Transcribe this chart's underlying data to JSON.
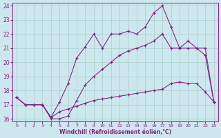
{
  "xlabel": "Windchill (Refroidissement éolien,°C)",
  "background_color": "#cce8ee",
  "grid_color": "#aacccc",
  "line_color": "#882288",
  "xlim": [
    -0.5,
    23.5
  ],
  "ylim": [
    15.8,
    24.2
  ],
  "xticks": [
    0,
    1,
    2,
    3,
    4,
    5,
    6,
    7,
    8,
    9,
    10,
    11,
    12,
    13,
    14,
    15,
    16,
    17,
    18,
    19,
    20,
    21,
    22,
    23
  ],
  "yticks": [
    16,
    17,
    18,
    19,
    20,
    21,
    22,
    23,
    24
  ],
  "line_top_x": [
    0,
    1,
    2,
    3,
    4,
    5,
    6,
    7,
    8,
    9,
    10,
    11,
    12,
    13,
    14,
    15,
    16,
    17,
    18,
    19,
    20,
    21,
    22,
    23
  ],
  "line_top_y": [
    17.5,
    17.0,
    17.0,
    17.0,
    16.1,
    17.2,
    18.5,
    20.3,
    21.1,
    22.0,
    21.0,
    22.0,
    22.0,
    22.2,
    22.0,
    22.5,
    23.5,
    24.0,
    22.5,
    21.0,
    21.5,
    21.0,
    21.0,
    17.2
  ],
  "line_mid_x": [
    0,
    1,
    2,
    3,
    4,
    5,
    6,
    7,
    8,
    9,
    10,
    11,
    12,
    13,
    14,
    15,
    16,
    17,
    18,
    19,
    20,
    21,
    22,
    23
  ],
  "line_mid_y": [
    17.5,
    17.0,
    17.0,
    17.0,
    16.0,
    16.0,
    16.2,
    17.3,
    18.4,
    19.0,
    19.5,
    20.0,
    20.5,
    20.8,
    21.0,
    21.2,
    21.5,
    22.0,
    21.0,
    21.0,
    21.0,
    21.0,
    20.5,
    17.2
  ],
  "line_bot_x": [
    0,
    1,
    2,
    3,
    4,
    5,
    6,
    7,
    8,
    9,
    10,
    11,
    12,
    13,
    14,
    15,
    16,
    17,
    18,
    19,
    20,
    21,
    22,
    23
  ],
  "line_bot_y": [
    17.5,
    17.0,
    17.0,
    17.0,
    16.1,
    16.5,
    16.7,
    16.9,
    17.1,
    17.3,
    17.4,
    17.5,
    17.6,
    17.7,
    17.8,
    17.9,
    18.0,
    18.1,
    18.5,
    18.6,
    18.5,
    18.5,
    17.9,
    17.2
  ]
}
